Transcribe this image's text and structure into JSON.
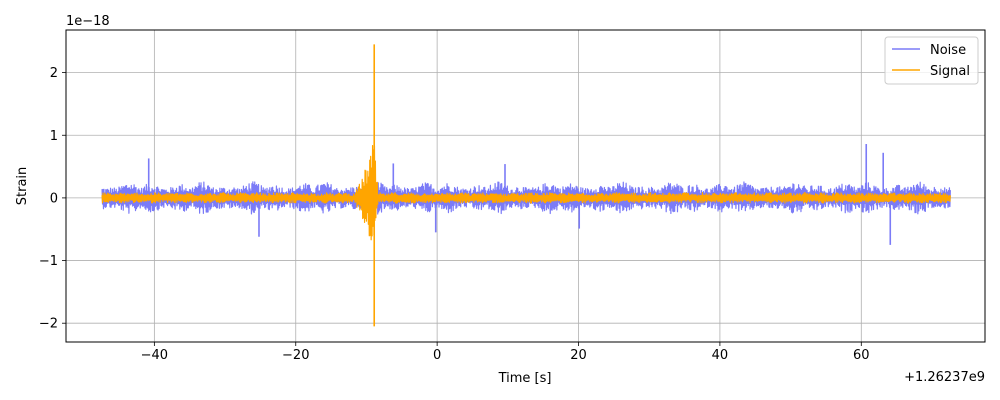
{
  "chart_data": {
    "type": "line",
    "title": "",
    "xlabel": "Time [s]",
    "ylabel": "Strain",
    "x_offset_label": "+1.26237e9",
    "y_scale_label": "1e−18",
    "xlim": [
      -52.5,
      77.5
    ],
    "ylim": [
      -2.3,
      2.68
    ],
    "x_ticks": [
      -40,
      -20,
      0,
      20,
      40,
      60
    ],
    "x_tick_labels": [
      "−40",
      "−20",
      "0",
      "20",
      "40",
      "60"
    ],
    "y_ticks": [
      -2,
      -1,
      0,
      1,
      2
    ],
    "y_tick_labels": [
      "−2",
      "−1",
      "0",
      "1",
      "2"
    ],
    "grid": true,
    "legend_position": "top-right",
    "series": [
      {
        "name": "Noise",
        "color": "#7b7bf7",
        "x_range": [
          -47.4,
          72.6
        ],
        "baseline_amplitude": 0.22,
        "peaks": [
          {
            "x": -40.8,
            "y": 0.63
          },
          {
            "x": -25.2,
            "y": -0.62
          },
          {
            "x": -6.2,
            "y": 0.55
          },
          {
            "x": -0.2,
            "y": -0.55
          },
          {
            "x": 9.6,
            "y": 0.54
          },
          {
            "x": 20.1,
            "y": -0.49
          },
          {
            "x": 60.7,
            "y": 0.86
          },
          {
            "x": 63.1,
            "y": 0.72
          },
          {
            "x": 64.1,
            "y": -0.75
          }
        ]
      },
      {
        "name": "Signal",
        "color": "#ffa500",
        "x_range": [
          -47.4,
          72.6
        ],
        "baseline_amplitude": 0.07,
        "chirp": {
          "start": -11.5,
          "merger": -8.9,
          "peak_max": 2.45,
          "peak_min": -2.05
        }
      }
    ]
  }
}
